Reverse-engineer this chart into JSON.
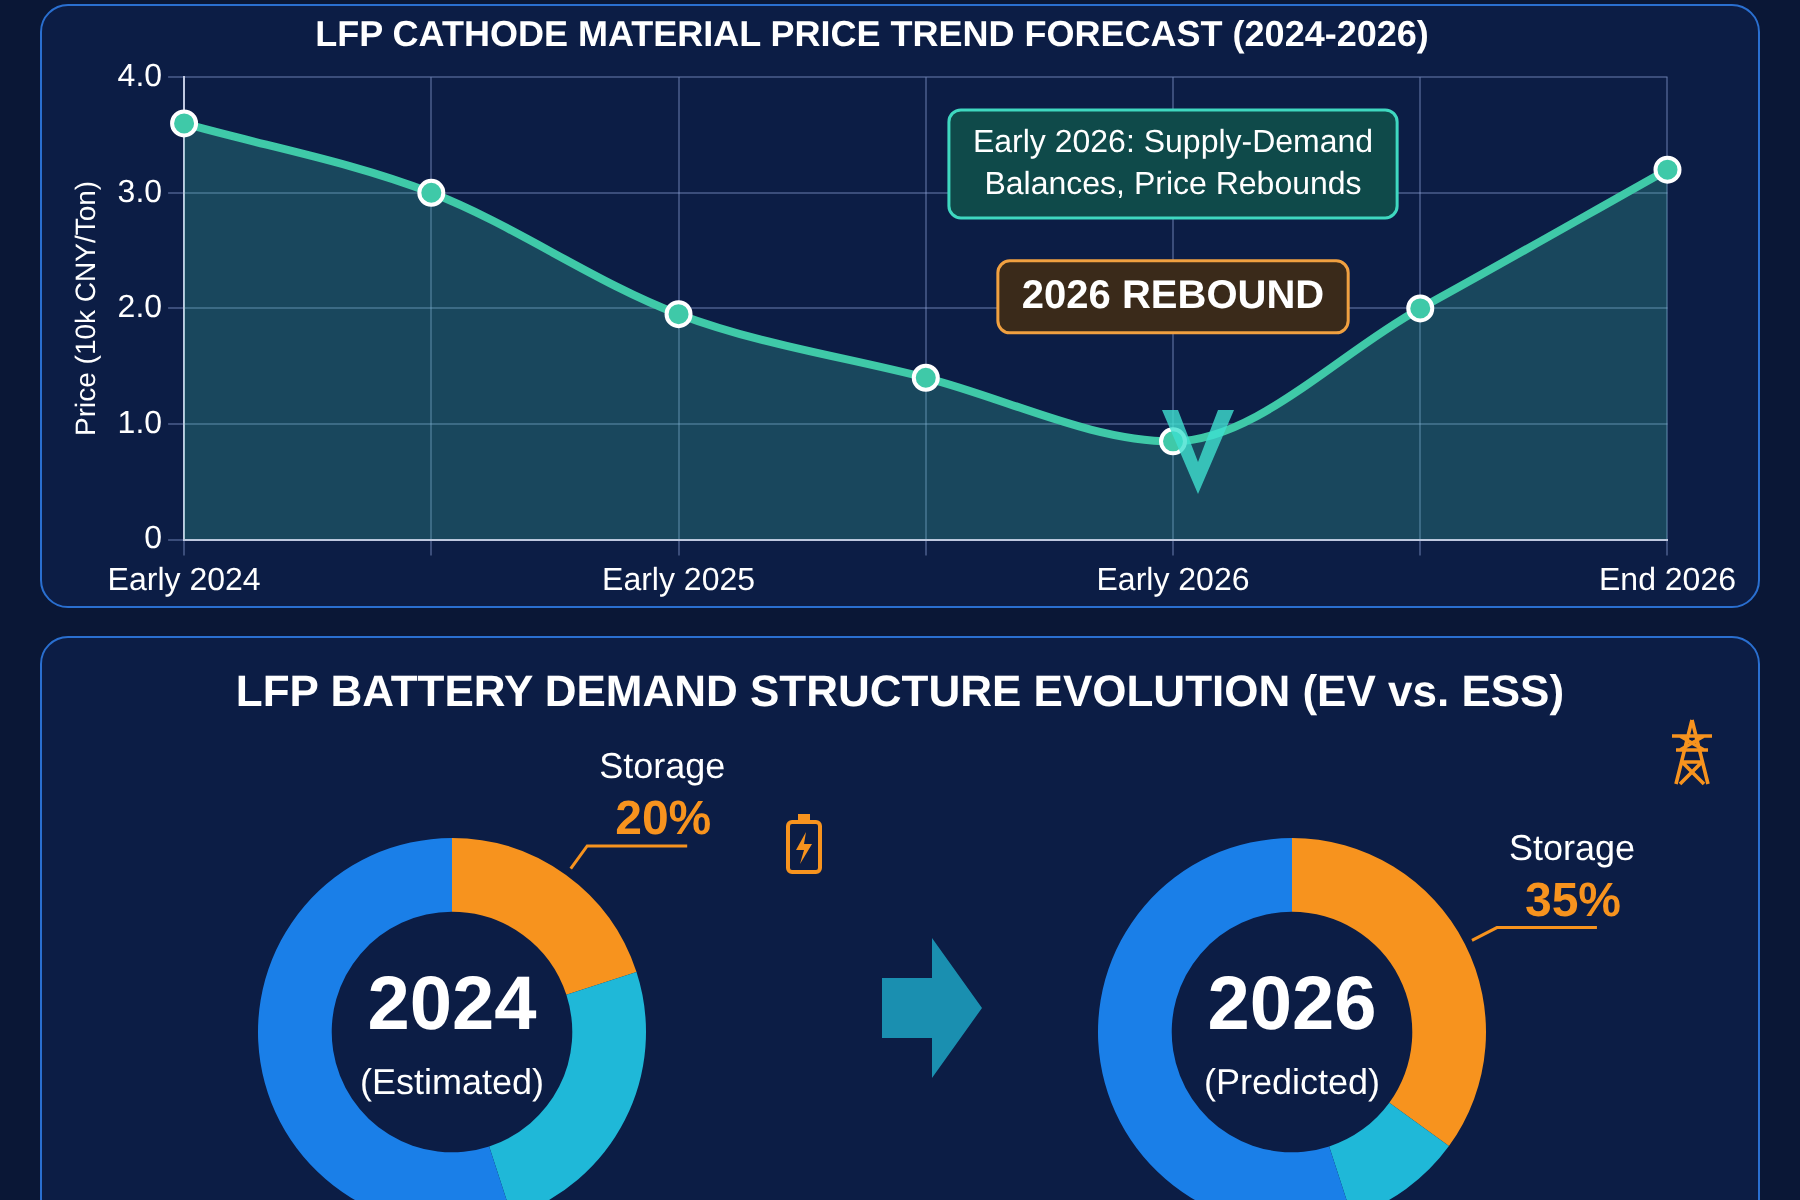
{
  "chart_data": [
    {
      "type": "area",
      "title": "LFP CATHODE MATERIAL PRICE TREND FORECAST (2024-2026)",
      "ylabel": "Price (10k CNY/Ton)",
      "categories": [
        "Early 2024",
        null,
        "Early 2025",
        null,
        "Early 2026",
        null,
        "End 2026"
      ],
      "values": [
        3.6,
        3.0,
        1.95,
        1.4,
        0.85,
        2.0,
        3.2
      ],
      "color": "#3fc9a8",
      "ylim": [
        0,
        4
      ],
      "yticks": [
        0,
        {
          "value": 1,
          "label": "1.0"
        },
        {
          "value": 2,
          "label": "2.0"
        },
        {
          "value": 3,
          "label": "3.0"
        },
        {
          "value": 4,
          "label": "4.0"
        }
      ],
      "grid": true,
      "marker": "circle",
      "legend": false,
      "annotations": [
        "Early 2026: Supply-Demand Balances, Price Rebounds",
        "2026 REBOUND"
      ]
    },
    {
      "type": "donut",
      "title": "LFP BATTERY DEMAND STRUCTURE EVOLUTION (EV vs. ESS)",
      "categories": [
        "Storage",
        null,
        null
      ],
      "values": [
        20,
        25,
        55
      ],
      "colors": [
        "#f7931e",
        "#1fb8d8",
        "#1a7fe8"
      ],
      "value_labels": [
        "20%",
        null,
        null
      ],
      "legend": false,
      "annotations": [
        "2024",
        "(Estimated)"
      ]
    },
    {
      "type": "donut",
      "categories": [
        "Storage",
        null,
        null
      ],
      "values": [
        35,
        10,
        55
      ],
      "colors": [
        "#f7931e",
        "#1fb8d8",
        "#1a7fe8"
      ],
      "value_labels": [
        "35%",
        null,
        null
      ],
      "legend": false,
      "annotations": [
        "2026",
        "(Predicted)"
      ]
    }
  ]
}
